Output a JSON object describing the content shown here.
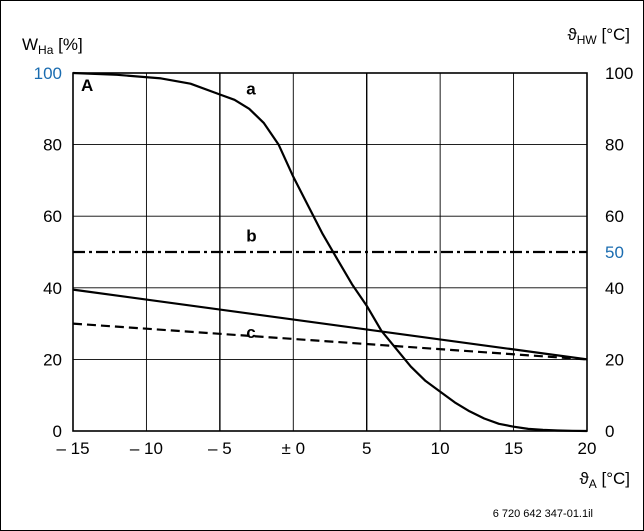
{
  "chart_data": {
    "type": "line",
    "left_axis": {
      "label_main": "W",
      "label_sub": "Ha",
      "label_unit": "[%]",
      "ylim": [
        0,
        100
      ],
      "ticks": [
        0,
        20,
        40,
        60,
        80,
        100
      ]
    },
    "right_axis": {
      "label_main": "ϑ",
      "label_sub": "HW",
      "label_unit": "[°C]",
      "ylim": [
        0,
        100
      ],
      "ticks": [
        0,
        20,
        40,
        60,
        80,
        100
      ],
      "highlight_tick": 50
    },
    "x_axis": {
      "label_main": "ϑ",
      "label_sub": "A",
      "label_unit": "[°C]",
      "xlim": [
        -15,
        20
      ],
      "ticks": [
        -15,
        -10,
        -5,
        0,
        5,
        10,
        15,
        20
      ],
      "tick_labels": [
        "– 15",
        "– 10",
        "– 5",
        "± 0",
        "5",
        "10",
        "15",
        "20"
      ]
    },
    "grid": true,
    "tick_color_highlight": "#1a6cb0",
    "series": [
      {
        "name": "a",
        "style": "solid",
        "x": [
          -15,
          -12,
          -9,
          -7,
          -5,
          -4,
          -3,
          -2,
          -1,
          0,
          1,
          2,
          3,
          4,
          5,
          6,
          7,
          8,
          9,
          10,
          11,
          12,
          13,
          14,
          15,
          16,
          17,
          18,
          19,
          20
        ],
        "y": [
          100,
          99.5,
          98.5,
          97,
          94,
          92.5,
          90,
          86,
          80,
          71,
          63,
          55,
          48,
          41,
          35,
          28,
          23,
          18,
          14,
          11,
          8,
          5.5,
          3.5,
          2,
          1.2,
          0.6,
          0.3,
          0.15,
          0.05,
          0
        ]
      },
      {
        "name": "b",
        "style": "dashdot",
        "x": [
          -15,
          20
        ],
        "y": [
          50,
          50
        ]
      },
      {
        "name": "",
        "style": "solid",
        "x": [
          -15,
          20
        ],
        "y": [
          39.5,
          20
        ]
      },
      {
        "name": "c",
        "style": "dashed",
        "x": [
          -15,
          20
        ],
        "y": [
          30,
          20
        ]
      }
    ],
    "annotations": [
      {
        "text": "A",
        "x": -15,
        "y": 100
      },
      {
        "text": "a",
        "x": -3.2,
        "y": 94
      },
      {
        "text": "b",
        "x": -3.2,
        "y": 53
      },
      {
        "text": "c",
        "x": -3.2,
        "y": 26
      }
    ],
    "footnote": "6 720 642 347-01.1il"
  }
}
